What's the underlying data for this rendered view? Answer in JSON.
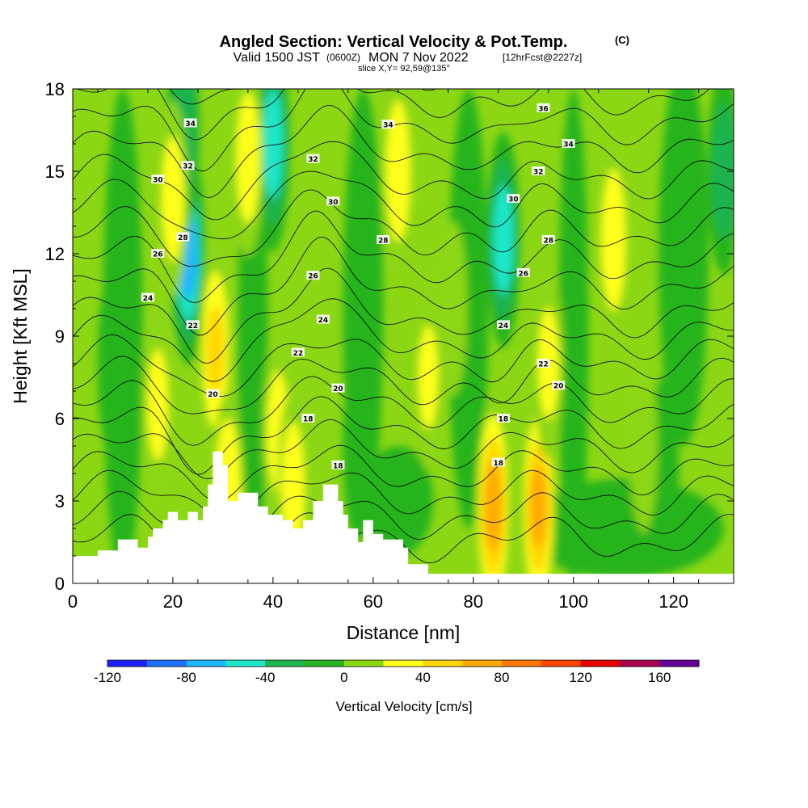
{
  "chart_data": {
    "type": "heatmap",
    "title": "Angled Section: Vertical Velocity & Pot.Temp.",
    "title_units": "(C)",
    "subtitle": {
      "valid": "Valid 1500 JST",
      "zulu": "(0600Z)",
      "date": "MON 7 Nov 2022",
      "forecast": "[12hrFcst@2227z]"
    },
    "slice_text": "slice X,Y= 92,59@135°",
    "xlabel": "Distance [nm]",
    "ylabel": "Height [Kft MSL]",
    "xlim": [
      0,
      132
    ],
    "ylim": [
      0,
      18
    ],
    "xticks": [
      "0",
      "20",
      "40",
      "60",
      "80",
      "100",
      "120"
    ],
    "xtick_values": [
      0,
      20,
      40,
      60,
      80,
      100,
      120
    ],
    "yticks": [
      "0",
      "3",
      "6",
      "9",
      "12",
      "15",
      "18"
    ],
    "ytick_values": [
      0,
      3,
      6,
      9,
      12,
      15,
      18
    ],
    "colorbar": {
      "label": "Vertical Velocity [cm/s]",
      "tick_labels": [
        "-120",
        "-80",
        "-40",
        "0",
        "40",
        "80",
        "120",
        "160"
      ],
      "tick_values": [
        -120,
        -80,
        -40,
        0,
        40,
        80,
        120,
        160
      ],
      "range": [
        -120,
        180
      ],
      "bin_width": 20,
      "colors": [
        "#1e1eff",
        "#1e6eff",
        "#1eb4ff",
        "#1ee6c8",
        "#1eb450",
        "#28b41e",
        "#8cd714",
        "#ffff1e",
        "#ffd700",
        "#ffaa00",
        "#ff7800",
        "#ff4600",
        "#e60000",
        "#aa0050",
        "#640096"
      ]
    },
    "terrain": [
      [
        0,
        1.0
      ],
      [
        5,
        1.0
      ],
      [
        5,
        1.2
      ],
      [
        9,
        1.2
      ],
      [
        9,
        1.6
      ],
      [
        13,
        1.6
      ],
      [
        13,
        1.3
      ],
      [
        15,
        1.3
      ],
      [
        15,
        1.7
      ],
      [
        16,
        1.7
      ],
      [
        16,
        2.0
      ],
      [
        18,
        2.0
      ],
      [
        18,
        2.3
      ],
      [
        19,
        2.3
      ],
      [
        19,
        2.6
      ],
      [
        21,
        2.6
      ],
      [
        21,
        2.3
      ],
      [
        23,
        2.3
      ],
      [
        23,
        2.6
      ],
      [
        25,
        2.6
      ],
      [
        25,
        2.3
      ],
      [
        26,
        2.3
      ],
      [
        26,
        2.8
      ],
      [
        27,
        2.8
      ],
      [
        27,
        3.6
      ],
      [
        28,
        3.6
      ],
      [
        28,
        4.8
      ],
      [
        30,
        4.8
      ],
      [
        30,
        4.3
      ],
      [
        31,
        4.3
      ],
      [
        31,
        3.0
      ],
      [
        33,
        3.0
      ],
      [
        33,
        3.3
      ],
      [
        37,
        3.3
      ],
      [
        37,
        2.8
      ],
      [
        39,
        2.8
      ],
      [
        39,
        2.5
      ],
      [
        42,
        2.5
      ],
      [
        42,
        2.3
      ],
      [
        44,
        2.3
      ],
      [
        44,
        2.0
      ],
      [
        46,
        2.0
      ],
      [
        46,
        2.3
      ],
      [
        48,
        2.3
      ],
      [
        48,
        3.0
      ],
      [
        50,
        3.0
      ],
      [
        50,
        3.6
      ],
      [
        53,
        3.6
      ],
      [
        53,
        3.0
      ],
      [
        54,
        3.0
      ],
      [
        54,
        2.5
      ],
      [
        55,
        2.5
      ],
      [
        55,
        2.0
      ],
      [
        57,
        2.0
      ],
      [
        57,
        1.5
      ],
      [
        58,
        1.5
      ],
      [
        58,
        2.3
      ],
      [
        60,
        2.3
      ],
      [
        60,
        1.8
      ],
      [
        62,
        1.8
      ],
      [
        62,
        1.6
      ],
      [
        66,
        1.6
      ],
      [
        66,
        1.3
      ],
      [
        67,
        1.3
      ],
      [
        67,
        0.7
      ],
      [
        71,
        0.7
      ],
      [
        71,
        0.35
      ],
      [
        132,
        0.35
      ]
    ],
    "updrafts": [
      {
        "x": 17,
        "y": 6.5,
        "w": 22
      },
      {
        "x": 28.5,
        "y": 8.5,
        "w": 40
      },
      {
        "x": 31,
        "y": 3.2,
        "w": 38
      },
      {
        "x": 35,
        "y": 15.5,
        "w": 28
      },
      {
        "x": 41,
        "y": 5.5,
        "w": 25
      },
      {
        "x": 44,
        "y": 3.5,
        "w": 28
      },
      {
        "x": 65,
        "y": 15.0,
        "w": 32
      },
      {
        "x": 71,
        "y": 7.5,
        "w": 20
      },
      {
        "x": 76,
        "y": 10.0,
        "w": 14
      },
      {
        "x": 84,
        "y": 2.8,
        "w": 64
      },
      {
        "x": 93,
        "y": 2.8,
        "w": 60
      },
      {
        "x": 95,
        "y": 8.0,
        "w": 22
      },
      {
        "x": 108,
        "y": 12.5,
        "w": 32
      },
      {
        "x": 114,
        "y": 5.0,
        "w": 14
      },
      {
        "x": 20,
        "y": 14.0,
        "w": 26
      }
    ],
    "downdrafts": [
      {
        "x": 23,
        "y": 12.0,
        "w": -70
      },
      {
        "x": 22,
        "y": 16.5,
        "w": -48
      },
      {
        "x": 40,
        "y": 16.0,
        "w": -55
      },
      {
        "x": 86,
        "y": 12.5,
        "w": -55
      },
      {
        "x": 118,
        "y": 4.0,
        "w": -24
      },
      {
        "x": 130,
        "y": 15.0,
        "w": -38
      },
      {
        "x": 8,
        "y": 8.0,
        "w": -22
      },
      {
        "x": 57,
        "y": 5.0,
        "w": -22
      }
    ],
    "isentropes": {
      "levels": [
        16,
        17,
        18,
        19,
        20,
        21,
        22,
        23,
        24,
        25,
        26,
        27,
        28,
        29,
        30,
        31,
        32,
        33,
        34,
        35,
        36
      ],
      "labels": [
        {
          "text": "36",
          "x": 94,
          "y": 17.3
        },
        {
          "text": "34",
          "x": 23.5,
          "y": 16.75
        },
        {
          "text": "34",
          "x": 63,
          "y": 16.7
        },
        {
          "text": "34",
          "x": 99,
          "y": 16.0
        },
        {
          "text": "32",
          "x": 23,
          "y": 15.2
        },
        {
          "text": "32",
          "x": 48,
          "y": 15.45
        },
        {
          "text": "32",
          "x": 93,
          "y": 15.0
        },
        {
          "text": "30",
          "x": 17,
          "y": 14.7
        },
        {
          "text": "30",
          "x": 52,
          "y": 13.9
        },
        {
          "text": "30",
          "x": 88,
          "y": 14.0
        },
        {
          "text": "28",
          "x": 22,
          "y": 12.6
        },
        {
          "text": "28",
          "x": 62,
          "y": 12.5
        },
        {
          "text": "28",
          "x": 95,
          "y": 12.5
        },
        {
          "text": "26",
          "x": 17,
          "y": 12.0
        },
        {
          "text": "26",
          "x": 48,
          "y": 11.2
        },
        {
          "text": "26",
          "x": 90,
          "y": 11.3
        },
        {
          "text": "24",
          "x": 15,
          "y": 10.4
        },
        {
          "text": "24",
          "x": 50,
          "y": 9.6
        },
        {
          "text": "24",
          "x": 86,
          "y": 9.4
        },
        {
          "text": "22",
          "x": 24,
          "y": 9.4
        },
        {
          "text": "22",
          "x": 45,
          "y": 8.4
        },
        {
          "text": "22",
          "x": 94,
          "y": 8.0
        },
        {
          "text": "20",
          "x": 28,
          "y": 6.9
        },
        {
          "text": "20",
          "x": 53,
          "y": 7.1
        },
        {
          "text": "20",
          "x": 97,
          "y": 7.2
        },
        {
          "text": "18",
          "x": 47,
          "y": 6.0
        },
        {
          "text": "18",
          "x": 86,
          "y": 6.0
        },
        {
          "text": "18",
          "x": 53,
          "y": 4.3
        },
        {
          "text": "18",
          "x": 85,
          "y": 4.4
        }
      ]
    }
  }
}
